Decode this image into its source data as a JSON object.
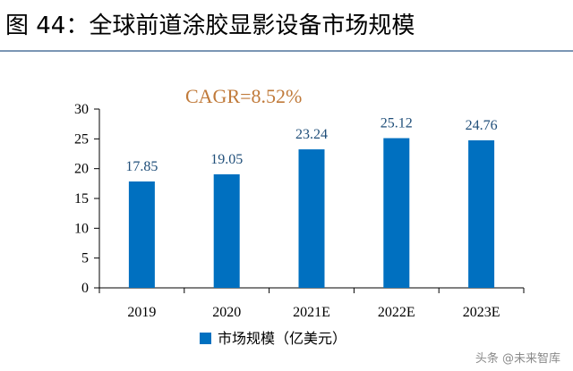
{
  "figure": {
    "title": "图 44：全球前道涂胶显影设备市场规模"
  },
  "chart_data": {
    "type": "bar",
    "categories": [
      "2019",
      "2020",
      "2021E",
      "2022E",
      "2023E"
    ],
    "series": [
      {
        "name": "市场规模（亿美元）",
        "values": [
          17.85,
          19.05,
          23.24,
          25.12,
          24.76
        ],
        "color": "#0070c0"
      }
    ],
    "data_labels": [
      "17.85",
      "19.05",
      "23.24",
      "25.12",
      "24.76"
    ],
    "ylim": [
      0,
      30
    ],
    "yticks": [
      0,
      5,
      10,
      15,
      20,
      25,
      30
    ],
    "grid": false,
    "legend": {
      "position": "bottom-center"
    },
    "annotation": "CAGR=8.52%",
    "colors": {
      "label": "#1f4e79",
      "annotation": "#c07a3a"
    }
  },
  "watermark": "头条 @未来智库"
}
